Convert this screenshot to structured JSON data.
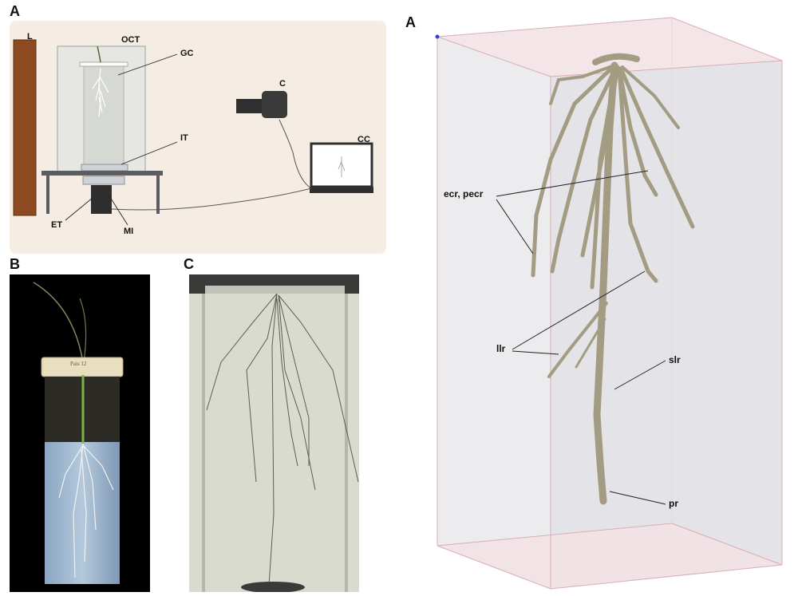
{
  "figure": {
    "panel_letters": {
      "setup": "A",
      "photo_jar": "B",
      "photo_roots": "C",
      "reconstruction": "A"
    },
    "setup_labels": {
      "lamp": "L",
      "octagon": "OCT",
      "glass_cylinder": "GC",
      "camera": "C",
      "computer": "CC",
      "table": "IT",
      "electric_turntable": "ET",
      "motor": "MI"
    },
    "jar_label_text": "Pais 12",
    "reconstruction_labels": {
      "crown_roots": "ecr, pecr",
      "long_laterals": "llr",
      "short_laterals": "slr",
      "primary_root": "pr"
    }
  },
  "colors": {
    "setup_background": "#f5ece3",
    "wood": "#8b4a1f",
    "root_3d": "#a39c82",
    "box_edge": "#e4b9bf",
    "box_fill": "#e9e9ec"
  }
}
